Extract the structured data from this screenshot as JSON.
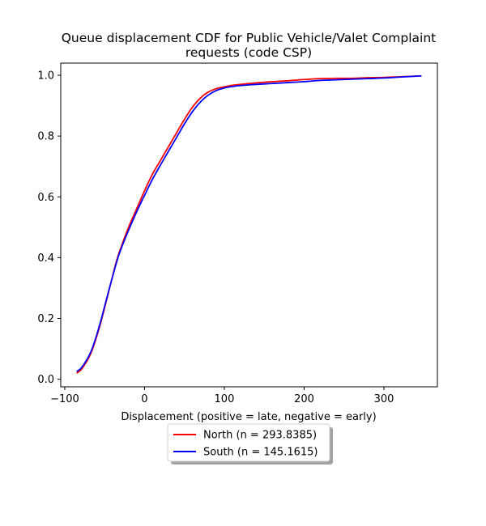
{
  "chart_data": {
    "type": "line",
    "title_line1": "Queue displacement CDF for Public Vehicle/Valet Complaint",
    "title_line2": "requests (code CSP)",
    "xlabel": "Displacement (positive = late, negative = early)",
    "ylabel": "",
    "xlim": [
      -105,
      367
    ],
    "ylim": [
      -0.025,
      1.04
    ],
    "xticks": [
      -100,
      0,
      100,
      200,
      300
    ],
    "xtick_labels": [
      "−100",
      "0",
      "100",
      "200",
      "300"
    ],
    "yticks": [
      0.0,
      0.2,
      0.4,
      0.6,
      0.8,
      1.0
    ],
    "ytick_labels": [
      "0.0",
      "0.2",
      "0.4",
      "0.6",
      "0.8",
      "1.0"
    ],
    "grid": false,
    "legend_position": "below-center",
    "series": [
      {
        "name": "North (n = 293.8385)",
        "color": "#ff0000",
        "x": [
          -85,
          -80,
          -75,
          -70,
          -65,
          -60,
          -55,
          -50,
          -45,
          -40,
          -35,
          -30,
          -20,
          -10,
          0,
          10,
          20,
          30,
          40,
          50,
          60,
          70,
          80,
          90,
          100,
          110,
          120,
          140,
          160,
          180,
          200,
          220,
          240,
          260,
          280,
          300,
          320,
          347
        ],
        "y": [
          0.02,
          0.03,
          0.048,
          0.07,
          0.1,
          0.14,
          0.185,
          0.235,
          0.287,
          0.34,
          0.39,
          0.43,
          0.5,
          0.56,
          0.62,
          0.675,
          0.72,
          0.765,
          0.81,
          0.855,
          0.895,
          0.925,
          0.945,
          0.956,
          0.962,
          0.967,
          0.97,
          0.975,
          0.979,
          0.982,
          0.986,
          0.989,
          0.99,
          0.99,
          0.992,
          0.993,
          0.995,
          0.998
        ]
      },
      {
        "name": "South (n = 145.1615)",
        "color": "#0000ff",
        "x": [
          -85,
          -80,
          -75,
          -70,
          -65,
          -60,
          -55,
          -50,
          -45,
          -40,
          -35,
          -30,
          -20,
          -10,
          0,
          10,
          20,
          30,
          40,
          50,
          60,
          70,
          80,
          90,
          100,
          110,
          120,
          140,
          160,
          180,
          200,
          220,
          240,
          260,
          280,
          300,
          320,
          347
        ],
        "y": [
          0.025,
          0.035,
          0.053,
          0.075,
          0.105,
          0.145,
          0.19,
          0.24,
          0.29,
          0.338,
          0.385,
          0.425,
          0.49,
          0.55,
          0.605,
          0.658,
          0.705,
          0.75,
          0.795,
          0.84,
          0.88,
          0.912,
          0.935,
          0.95,
          0.958,
          0.963,
          0.966,
          0.97,
          0.973,
          0.976,
          0.979,
          0.983,
          0.985,
          0.987,
          0.989,
          0.991,
          0.994,
          0.998
        ]
      }
    ]
  }
}
